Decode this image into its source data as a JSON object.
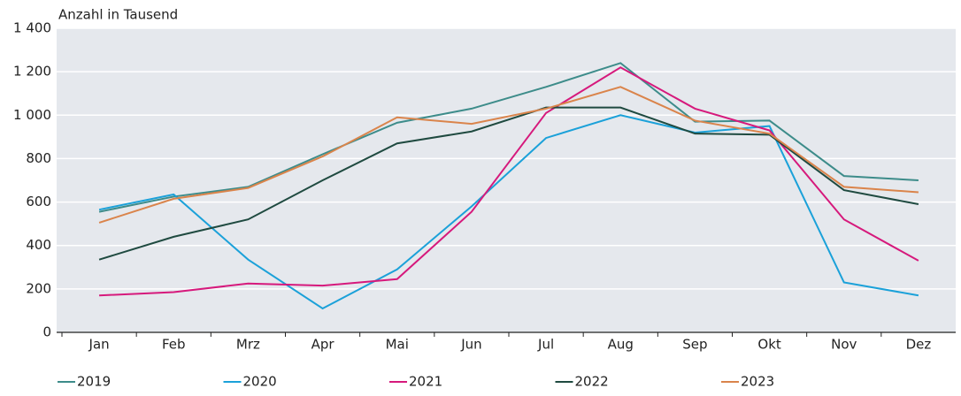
{
  "chart_data": {
    "type": "line",
    "y_label": "Anzahl in Tausend",
    "categories": [
      "Jan",
      "Feb",
      "Mrz",
      "Apr",
      "Mai",
      "Jun",
      "Jul",
      "Aug",
      "Sep",
      "Okt",
      "Nov",
      "Dez"
    ],
    "series": [
      {
        "name": "2019",
        "color": "#3d8c8a",
        "values": [
          555,
          625,
          670,
          820,
          965,
          1030,
          1130,
          1240,
          970,
          975,
          720,
          700
        ]
      },
      {
        "name": "2020",
        "color": "#1ba1d9",
        "values": [
          565,
          635,
          335,
          110,
          290,
          580,
          895,
          1000,
          920,
          950,
          230,
          170
        ]
      },
      {
        "name": "2021",
        "color": "#d6197c",
        "values": [
          170,
          185,
          225,
          215,
          245,
          555,
          1010,
          1220,
          1030,
          930,
          520,
          330
        ]
      },
      {
        "name": "2022",
        "color": "#1f4a40",
        "values": [
          335,
          440,
          520,
          700,
          870,
          925,
          1035,
          1035,
          915,
          910,
          655,
          590
        ]
      },
      {
        "name": "2023",
        "color": "#da844b",
        "values": [
          505,
          615,
          665,
          810,
          990,
          960,
          1030,
          1130,
          975,
          915,
          670,
          645
        ]
      }
    ],
    "ylim": [
      0,
      1400
    ],
    "yticks": [
      0,
      200,
      400,
      600,
      800,
      {
        "value": 1000,
        "label": "1 000"
      },
      {
        "value": 1200,
        "label": "1 200"
      },
      {
        "value": 1400,
        "label": "1 400"
      }
    ],
    "grid": true
  }
}
